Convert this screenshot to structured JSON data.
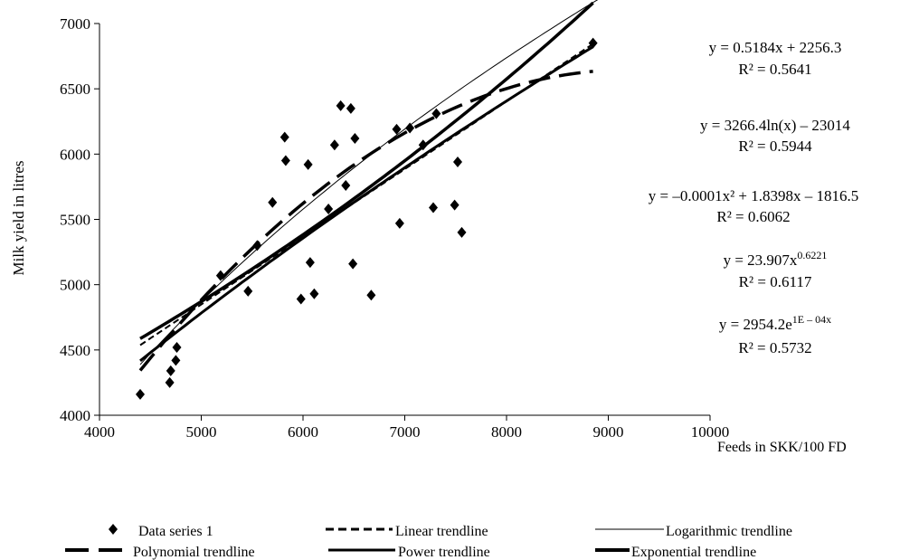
{
  "chart_data": {
    "type": "scatter",
    "xlabel": "Feeds in SKK/100 FD",
    "ylabel": "Milk yield  in litres",
    "xlim": [
      4000,
      10000
    ],
    "ylim": [
      4000,
      7000
    ],
    "x_ticks": [
      4000,
      5000,
      6000,
      7000,
      8000,
      9000,
      10000
    ],
    "y_ticks": [
      4000,
      4500,
      5000,
      5500,
      6000,
      6500,
      7000
    ],
    "grid": false,
    "legend_position": "bottom",
    "series": [
      {
        "name": "Data series 1",
        "points": [
          [
            4400,
            4160
          ],
          [
            4690,
            4250
          ],
          [
            4700,
            4340
          ],
          [
            4750,
            4420
          ],
          [
            4760,
            4520
          ],
          [
            5190,
            5070
          ],
          [
            5460,
            4950
          ],
          [
            5550,
            5300
          ],
          [
            5700,
            5630
          ],
          [
            5820,
            6130
          ],
          [
            5830,
            5950
          ],
          [
            5980,
            4890
          ],
          [
            6050,
            5920
          ],
          [
            6070,
            5170
          ],
          [
            6110,
            4930
          ],
          [
            6250,
            5580
          ],
          [
            6310,
            6070
          ],
          [
            6370,
            6370
          ],
          [
            6420,
            5760
          ],
          [
            6470,
            6350
          ],
          [
            6490,
            5160
          ],
          [
            6510,
            6120
          ],
          [
            6670,
            4920
          ],
          [
            6920,
            6190
          ],
          [
            6950,
            5470
          ],
          [
            7050,
            6200
          ],
          [
            7180,
            6070
          ],
          [
            7280,
            5590
          ],
          [
            7310,
            6310
          ],
          [
            7490,
            5610
          ],
          [
            7520,
            5940
          ],
          [
            7560,
            5400
          ],
          [
            8850,
            6850
          ]
        ]
      }
    ],
    "trendlines": [
      {
        "name": "Linear trendline",
        "equation": "y = 0.5184x + 2256.3",
        "r2": "R² = 0.5641"
      },
      {
        "name": "Logarithmic trendline",
        "equation": "y = 3266.4ln(x) – 23014",
        "r2": "R² = 0.5944"
      },
      {
        "name": "Polynomial trendline",
        "equation": "y = –0.0001x² + 1.8398x – 1816.5",
        "r2": "R² = 0.6062"
      },
      {
        "name": "Power trendline",
        "equation": "y = 23.907x^0.6221",
        "r2": "R² = 0.6117"
      },
      {
        "name": "Exponential trendline",
        "equation": "y = 2954.2e^1E – 04x",
        "r2": "R² = 0.5732"
      }
    ]
  }
}
